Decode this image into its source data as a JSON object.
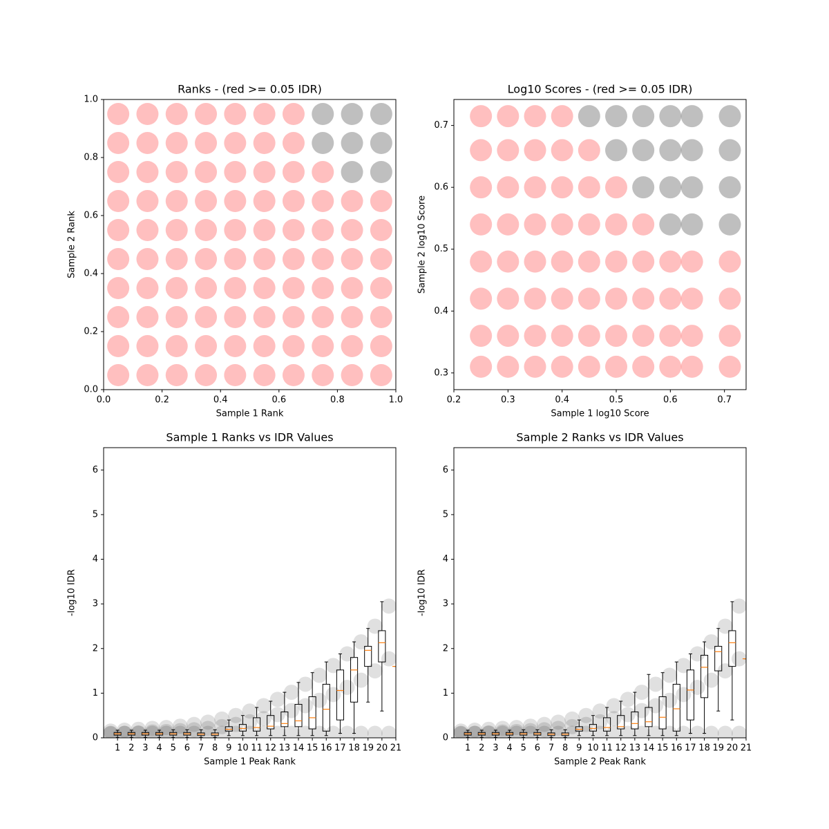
{
  "chart_data": [
    {
      "type": "scatter",
      "title": "Ranks - (red >= 0.05 IDR)",
      "x_label": "Sample 1 Rank",
      "y_label": "Sample 2 Rank",
      "xlim": [
        0,
        1
      ],
      "ylim": [
        0,
        1
      ],
      "xticks": [
        {
          "value": 0,
          "label": "0.0"
        },
        0.2,
        0.4,
        0.6,
        0.8,
        {
          "value": 1,
          "label": "1.0"
        }
      ],
      "yticks": [
        {
          "value": 0,
          "label": "0.0"
        },
        0.2,
        0.4,
        0.6,
        0.8,
        {
          "value": 1,
          "label": "1.0"
        }
      ],
      "series": [
        {
          "color": "#ff0000",
          "x": [
            0.05,
            0.15,
            0.25,
            0.35,
            0.45,
            0.55,
            0.65,
            0.75,
            0.85,
            0.95,
            0.05,
            0.15,
            0.25,
            0.35,
            0.45,
            0.55,
            0.65,
            0.75,
            0.85,
            0.95,
            0.05,
            0.15,
            0.25,
            0.35,
            0.45,
            0.55,
            0.65,
            0.75,
            0.85,
            0.95,
            0.05,
            0.15,
            0.25,
            0.35,
            0.45,
            0.55,
            0.65,
            0.75,
            0.85,
            0.95,
            0.05,
            0.15,
            0.25,
            0.35,
            0.45,
            0.55,
            0.65,
            0.75,
            0.85,
            0.95,
            0.05,
            0.15,
            0.25,
            0.35,
            0.45,
            0.55,
            0.65,
            0.75,
            0.85,
            0.95,
            0.05,
            0.15,
            0.25,
            0.35,
            0.45,
            0.55,
            0.65,
            0.75,
            0.85,
            0.95,
            0.05,
            0.15,
            0.25,
            0.35,
            0.45,
            0.55,
            0.65,
            0.75,
            0.05,
            0.15,
            0.25,
            0.35,
            0.45,
            0.55,
            0.65,
            0.05,
            0.15,
            0.25,
            0.35,
            0.45,
            0.55,
            0.65
          ],
          "y": [
            0.05,
            0.05,
            0.05,
            0.05,
            0.05,
            0.05,
            0.05,
            0.05,
            0.05,
            0.05,
            0.15,
            0.15,
            0.15,
            0.15,
            0.15,
            0.15,
            0.15,
            0.15,
            0.15,
            0.15,
            0.25,
            0.25,
            0.25,
            0.25,
            0.25,
            0.25,
            0.25,
            0.25,
            0.25,
            0.25,
            0.35,
            0.35,
            0.35,
            0.35,
            0.35,
            0.35,
            0.35,
            0.35,
            0.35,
            0.35,
            0.45,
            0.45,
            0.45,
            0.45,
            0.45,
            0.45,
            0.45,
            0.45,
            0.45,
            0.45,
            0.55,
            0.55,
            0.55,
            0.55,
            0.55,
            0.55,
            0.55,
            0.55,
            0.55,
            0.55,
            0.65,
            0.65,
            0.65,
            0.65,
            0.65,
            0.65,
            0.65,
            0.65,
            0.65,
            0.65,
            0.75,
            0.75,
            0.75,
            0.75,
            0.75,
            0.75,
            0.75,
            0.75,
            0.85,
            0.85,
            0.85,
            0.85,
            0.85,
            0.85,
            0.85,
            0.95,
            0.95,
            0.95,
            0.95,
            0.95,
            0.95,
            0.95
          ]
        },
        {
          "color": "#000000",
          "x": [
            0.85,
            0.95,
            0.75,
            0.85,
            0.95,
            0.75,
            0.85,
            0.95
          ],
          "y": [
            0.75,
            0.75,
            0.85,
            0.85,
            0.85,
            0.95,
            0.95,
            0.95
          ]
        }
      ]
    },
    {
      "type": "scatter",
      "title": "Log10 Scores - (red >= 0.05 IDR)",
      "x_label": "Sample 1 log10 Score",
      "y_label": "Sample 2 log10 Score",
      "xlim": [
        0.2,
        0.74
      ],
      "ylim": [
        0.273,
        0.742
      ],
      "xticks": [
        0.2,
        0.3,
        0.4,
        0.5,
        0.6,
        0.7
      ],
      "yticks": [
        0.3,
        0.4,
        0.5,
        0.6,
        0.7
      ],
      "series": [
        {
          "color": "#ff0000",
          "x": [
            0.25,
            0.3,
            0.35,
            0.4,
            0.45,
            0.5,
            0.55,
            0.6,
            0.64,
            0.71,
            0.25,
            0.3,
            0.35,
            0.4,
            0.45,
            0.5,
            0.55,
            0.6,
            0.64,
            0.71,
            0.25,
            0.3,
            0.35,
            0.4,
            0.45,
            0.5,
            0.55,
            0.6,
            0.64,
            0.71,
            0.25,
            0.3,
            0.35,
            0.4,
            0.45,
            0.5,
            0.55,
            0.6,
            0.64,
            0.71,
            0.25,
            0.3,
            0.35,
            0.4,
            0.45,
            0.5,
            0.55,
            0.25,
            0.3,
            0.35,
            0.4,
            0.45,
            0.5,
            0.25,
            0.3,
            0.35,
            0.4,
            0.45,
            0.25,
            0.3,
            0.35,
            0.4
          ],
          "y": [
            0.31,
            0.31,
            0.31,
            0.31,
            0.31,
            0.31,
            0.31,
            0.31,
            0.31,
            0.31,
            0.36,
            0.36,
            0.36,
            0.36,
            0.36,
            0.36,
            0.36,
            0.36,
            0.36,
            0.36,
            0.42,
            0.42,
            0.42,
            0.42,
            0.42,
            0.42,
            0.42,
            0.42,
            0.42,
            0.42,
            0.48,
            0.48,
            0.48,
            0.48,
            0.48,
            0.48,
            0.48,
            0.48,
            0.48,
            0.48,
            0.54,
            0.54,
            0.54,
            0.54,
            0.54,
            0.54,
            0.54,
            0.6,
            0.6,
            0.6,
            0.6,
            0.6,
            0.6,
            0.66,
            0.66,
            0.66,
            0.66,
            0.66,
            0.715,
            0.715,
            0.715,
            0.715
          ]
        },
        {
          "color": "#000000",
          "x": [
            0.6,
            0.64,
            0.71,
            0.55,
            0.6,
            0.64,
            0.71,
            0.5,
            0.55,
            0.6,
            0.64,
            0.71,
            0.45,
            0.5,
            0.55,
            0.6,
            0.64,
            0.71
          ],
          "y": [
            0.54,
            0.54,
            0.54,
            0.6,
            0.6,
            0.6,
            0.6,
            0.66,
            0.66,
            0.66,
            0.66,
            0.66,
            0.715,
            0.715,
            0.715,
            0.715,
            0.715,
            0.715
          ]
        }
      ]
    },
    {
      "type": "box",
      "title": "Sample 1 Ranks vs IDR Values",
      "x_label": "Sample 1 Peak Rank",
      "y_label": "-log10 IDR",
      "xlim": [
        0,
        21
      ],
      "ylim": [
        0,
        6.5
      ],
      "xticks": [
        1,
        2,
        3,
        4,
        5,
        6,
        7,
        8,
        9,
        10,
        11,
        12,
        13,
        14,
        15,
        16,
        17,
        18,
        19,
        20,
        21
      ],
      "yticks": [
        0,
        1,
        2,
        3,
        4,
        5,
        6
      ],
      "points": {
        "color": "#000000",
        "x": [
          0.5,
          0.5,
          0.5,
          1.5,
          1.5,
          1.5,
          2.5,
          2.5,
          2.5,
          3.5,
          3.5,
          3.5,
          4.5,
          4.5,
          4.5,
          5.5,
          5.5,
          5.5,
          6.5,
          6.5,
          6.5,
          7.5,
          7.5,
          7.5,
          8.5,
          8.5,
          8.5,
          9.5,
          9.5,
          9.5,
          10.5,
          10.5,
          10.5,
          11.5,
          11.5,
          11.5,
          12.5,
          12.5,
          12.5,
          13.5,
          13.5,
          13.5,
          14.5,
          14.5,
          14.5,
          15.5,
          15.5,
          15.5,
          16.5,
          16.5,
          16.5,
          17.5,
          17.5,
          17.5,
          18.5,
          18.5,
          18.5,
          19.5,
          19.5,
          19.5,
          20.5,
          20.5,
          20.5
        ],
        "y": [
          0.15,
          0.09,
          0.1,
          0.17,
          0.1,
          0.1,
          0.19,
          0.11,
          0.1,
          0.21,
          0.13,
          0.1,
          0.23,
          0.14,
          0.1,
          0.26,
          0.16,
          0.1,
          0.3,
          0.18,
          0.1,
          0.35,
          0.21,
          0.1,
          0.42,
          0.25,
          0.1,
          0.5,
          0.3,
          0.1,
          0.6,
          0.36,
          0.1,
          0.72,
          0.43,
          0.1,
          0.86,
          0.52,
          0.1,
          1.02,
          0.61,
          0.1,
          1.2,
          0.72,
          0.1,
          1.4,
          0.84,
          0.1,
          1.62,
          0.97,
          0.1,
          1.88,
          1.13,
          0.1,
          2.15,
          1.29,
          0.1,
          2.5,
          1.5,
          0.1,
          2.95,
          1.77,
          0.1
        ]
      },
      "box_color": "#000000",
      "median_color": "#ff7f0e",
      "x": [
        1,
        2,
        3,
        4,
        5,
        6,
        7,
        8,
        9,
        10,
        11,
        12,
        13,
        14,
        15,
        16,
        17,
        18,
        19,
        20,
        21
      ],
      "median": [
        0.09,
        0.09,
        0.09,
        0.09,
        0.09,
        0.09,
        0.08,
        0.08,
        0.19,
        0.21,
        0.23,
        0.26,
        0.32,
        0.38,
        0.45,
        0.64,
        1.06,
        1.52,
        1.96,
        2.13,
        1.6
      ],
      "q1": [
        0.06,
        0.06,
        0.06,
        0.06,
        0.06,
        0.06,
        0.05,
        0.05,
        0.15,
        0.15,
        0.15,
        0.2,
        0.25,
        0.25,
        0.2,
        0.15,
        0.4,
        0.8,
        1.6,
        1.7,
        1.6
      ],
      "q3": [
        0.12,
        0.12,
        0.12,
        0.12,
        0.12,
        0.12,
        0.11,
        0.11,
        0.25,
        0.3,
        0.45,
        0.5,
        0.58,
        0.75,
        0.92,
        1.2,
        1.52,
        1.8,
        2.05,
        2.4,
        1.6
      ],
      "whislo": [
        0.01,
        0.01,
        0.01,
        0.01,
        0.01,
        0.01,
        0.01,
        0.01,
        0.05,
        0.05,
        0.05,
        0.05,
        0.05,
        0.05,
        0.05,
        0.05,
        0.1,
        0.1,
        0.8,
        0.6,
        1.6
      ],
      "whishi": [
        0.17,
        0.17,
        0.17,
        0.17,
        0.18,
        0.18,
        0.18,
        0.18,
        0.4,
        0.5,
        0.68,
        0.82,
        1.02,
        1.24,
        1.46,
        1.7,
        1.88,
        2.15,
        2.45,
        3.05,
        1.6
      ]
    },
    {
      "type": "box",
      "title": "Sample 2 Ranks vs IDR Values",
      "x_label": "Sample 2 Peak Rank",
      "y_label": "-log10 IDR",
      "xlim": [
        0,
        21
      ],
      "ylim": [
        0,
        6.5
      ],
      "xticks": [
        1,
        2,
        3,
        4,
        5,
        6,
        7,
        8,
        9,
        10,
        11,
        12,
        13,
        14,
        15,
        16,
        17,
        18,
        19,
        20,
        21
      ],
      "yticks": [
        0,
        1,
        2,
        3,
        4,
        5,
        6
      ],
      "points": {
        "color": "#000000",
        "x": [
          0.5,
          0.5,
          0.5,
          1.5,
          1.5,
          1.5,
          2.5,
          2.5,
          2.5,
          3.5,
          3.5,
          3.5,
          4.5,
          4.5,
          4.5,
          5.5,
          5.5,
          5.5,
          6.5,
          6.5,
          6.5,
          7.5,
          7.5,
          7.5,
          8.5,
          8.5,
          8.5,
          9.5,
          9.5,
          9.5,
          10.5,
          10.5,
          10.5,
          11.5,
          11.5,
          11.5,
          12.5,
          12.5,
          12.5,
          13.5,
          13.5,
          13.5,
          14.5,
          14.5,
          14.5,
          15.5,
          15.5,
          15.5,
          16.5,
          16.5,
          16.5,
          17.5,
          17.5,
          17.5,
          18.5,
          18.5,
          18.5,
          19.5,
          19.5,
          19.5,
          20.5,
          20.5,
          20.5
        ],
        "y": [
          0.15,
          0.09,
          0.1,
          0.17,
          0.1,
          0.1,
          0.19,
          0.11,
          0.1,
          0.21,
          0.13,
          0.1,
          0.23,
          0.14,
          0.1,
          0.26,
          0.16,
          0.1,
          0.3,
          0.18,
          0.1,
          0.35,
          0.21,
          0.1,
          0.42,
          0.25,
          0.1,
          0.5,
          0.3,
          0.1,
          0.6,
          0.36,
          0.1,
          0.72,
          0.43,
          0.1,
          0.86,
          0.52,
          0.1,
          1.02,
          0.61,
          0.1,
          1.2,
          0.72,
          0.1,
          1.4,
          0.84,
          0.1,
          1.62,
          0.97,
          0.1,
          1.88,
          1.13,
          0.1,
          2.15,
          1.29,
          0.1,
          2.5,
          1.5,
          0.1,
          2.95,
          1.77,
          0.1
        ]
      },
      "box_color": "#000000",
      "median_color": "#ff7f0e",
      "x": [
        1,
        2,
        3,
        4,
        5,
        6,
        7,
        8,
        9,
        10,
        11,
        12,
        13,
        14,
        15,
        16,
        17,
        18,
        19,
        20,
        21
      ],
      "median": [
        0.09,
        0.09,
        0.09,
        0.09,
        0.09,
        0.09,
        0.08,
        0.08,
        0.19,
        0.21,
        0.23,
        0.25,
        0.32,
        0.36,
        0.46,
        0.65,
        1.07,
        1.58,
        1.93,
        2.13,
        1.77
      ],
      "q1": [
        0.06,
        0.06,
        0.06,
        0.06,
        0.06,
        0.06,
        0.05,
        0.05,
        0.15,
        0.15,
        0.15,
        0.2,
        0.2,
        0.25,
        0.2,
        0.15,
        0.4,
        0.9,
        1.5,
        1.6,
        1.77
      ],
      "q3": [
        0.12,
        0.12,
        0.12,
        0.12,
        0.12,
        0.12,
        0.11,
        0.11,
        0.25,
        0.3,
        0.45,
        0.5,
        0.58,
        0.68,
        0.92,
        1.2,
        1.52,
        1.85,
        2.05,
        2.4,
        1.77
      ],
      "whislo": [
        0.01,
        0.01,
        0.01,
        0.01,
        0.01,
        0.01,
        0.01,
        0.01,
        0.05,
        0.05,
        0.05,
        0.05,
        0.05,
        0.05,
        0.05,
        0.05,
        0.1,
        0.1,
        0.6,
        0.4,
        1.77
      ],
      "whishi": [
        0.17,
        0.17,
        0.17,
        0.17,
        0.18,
        0.18,
        0.18,
        0.18,
        0.4,
        0.5,
        0.68,
        0.82,
        1.02,
        1.42,
        1.46,
        1.7,
        1.88,
        2.15,
        2.45,
        3.05,
        1.77
      ]
    }
  ]
}
